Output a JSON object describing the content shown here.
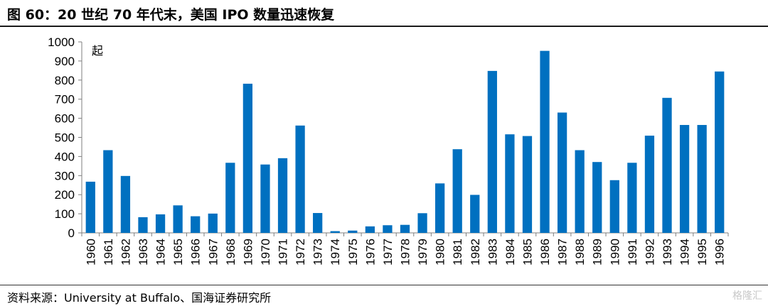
{
  "header": {
    "title": "图 60：20 世纪 70 年代末，美国 IPO 数量迅速恢复"
  },
  "footer": {
    "source": "资料来源：University at Buffalo、国海证券研究所",
    "watermark": "格隆汇"
  },
  "chart_data": {
    "type": "bar",
    "title": "",
    "xlabel": "",
    "ylabel": "",
    "unit_label": "起",
    "ylim": [
      0,
      1000
    ],
    "yticks": [
      0,
      100,
      200,
      300,
      400,
      500,
      600,
      700,
      800,
      900,
      1000
    ],
    "grid": false,
    "legend": "none",
    "bar_color": "#0070C0",
    "categories": [
      "1960",
      "1961",
      "1962",
      "1963",
      "1964",
      "1965",
      "1966",
      "1967",
      "1968",
      "1969",
      "1970",
      "1971",
      "1972",
      "1973",
      "1974",
      "1975",
      "1976",
      "1977",
      "1978",
      "1979",
      "1980",
      "1981",
      "1982",
      "1983",
      "1984",
      "1985",
      "1986",
      "1987",
      "1988",
      "1989",
      "1990",
      "1991",
      "1992",
      "1993",
      "1994",
      "1995",
      "1996"
    ],
    "values": [
      268,
      433,
      298,
      82,
      97,
      144,
      87,
      101,
      367,
      781,
      358,
      391,
      562,
      104,
      9,
      12,
      34,
      40,
      42,
      103,
      259,
      438,
      199,
      848,
      516,
      507,
      953,
      630,
      433,
      371,
      276,
      367,
      509,
      707,
      565,
      565,
      845
    ]
  }
}
